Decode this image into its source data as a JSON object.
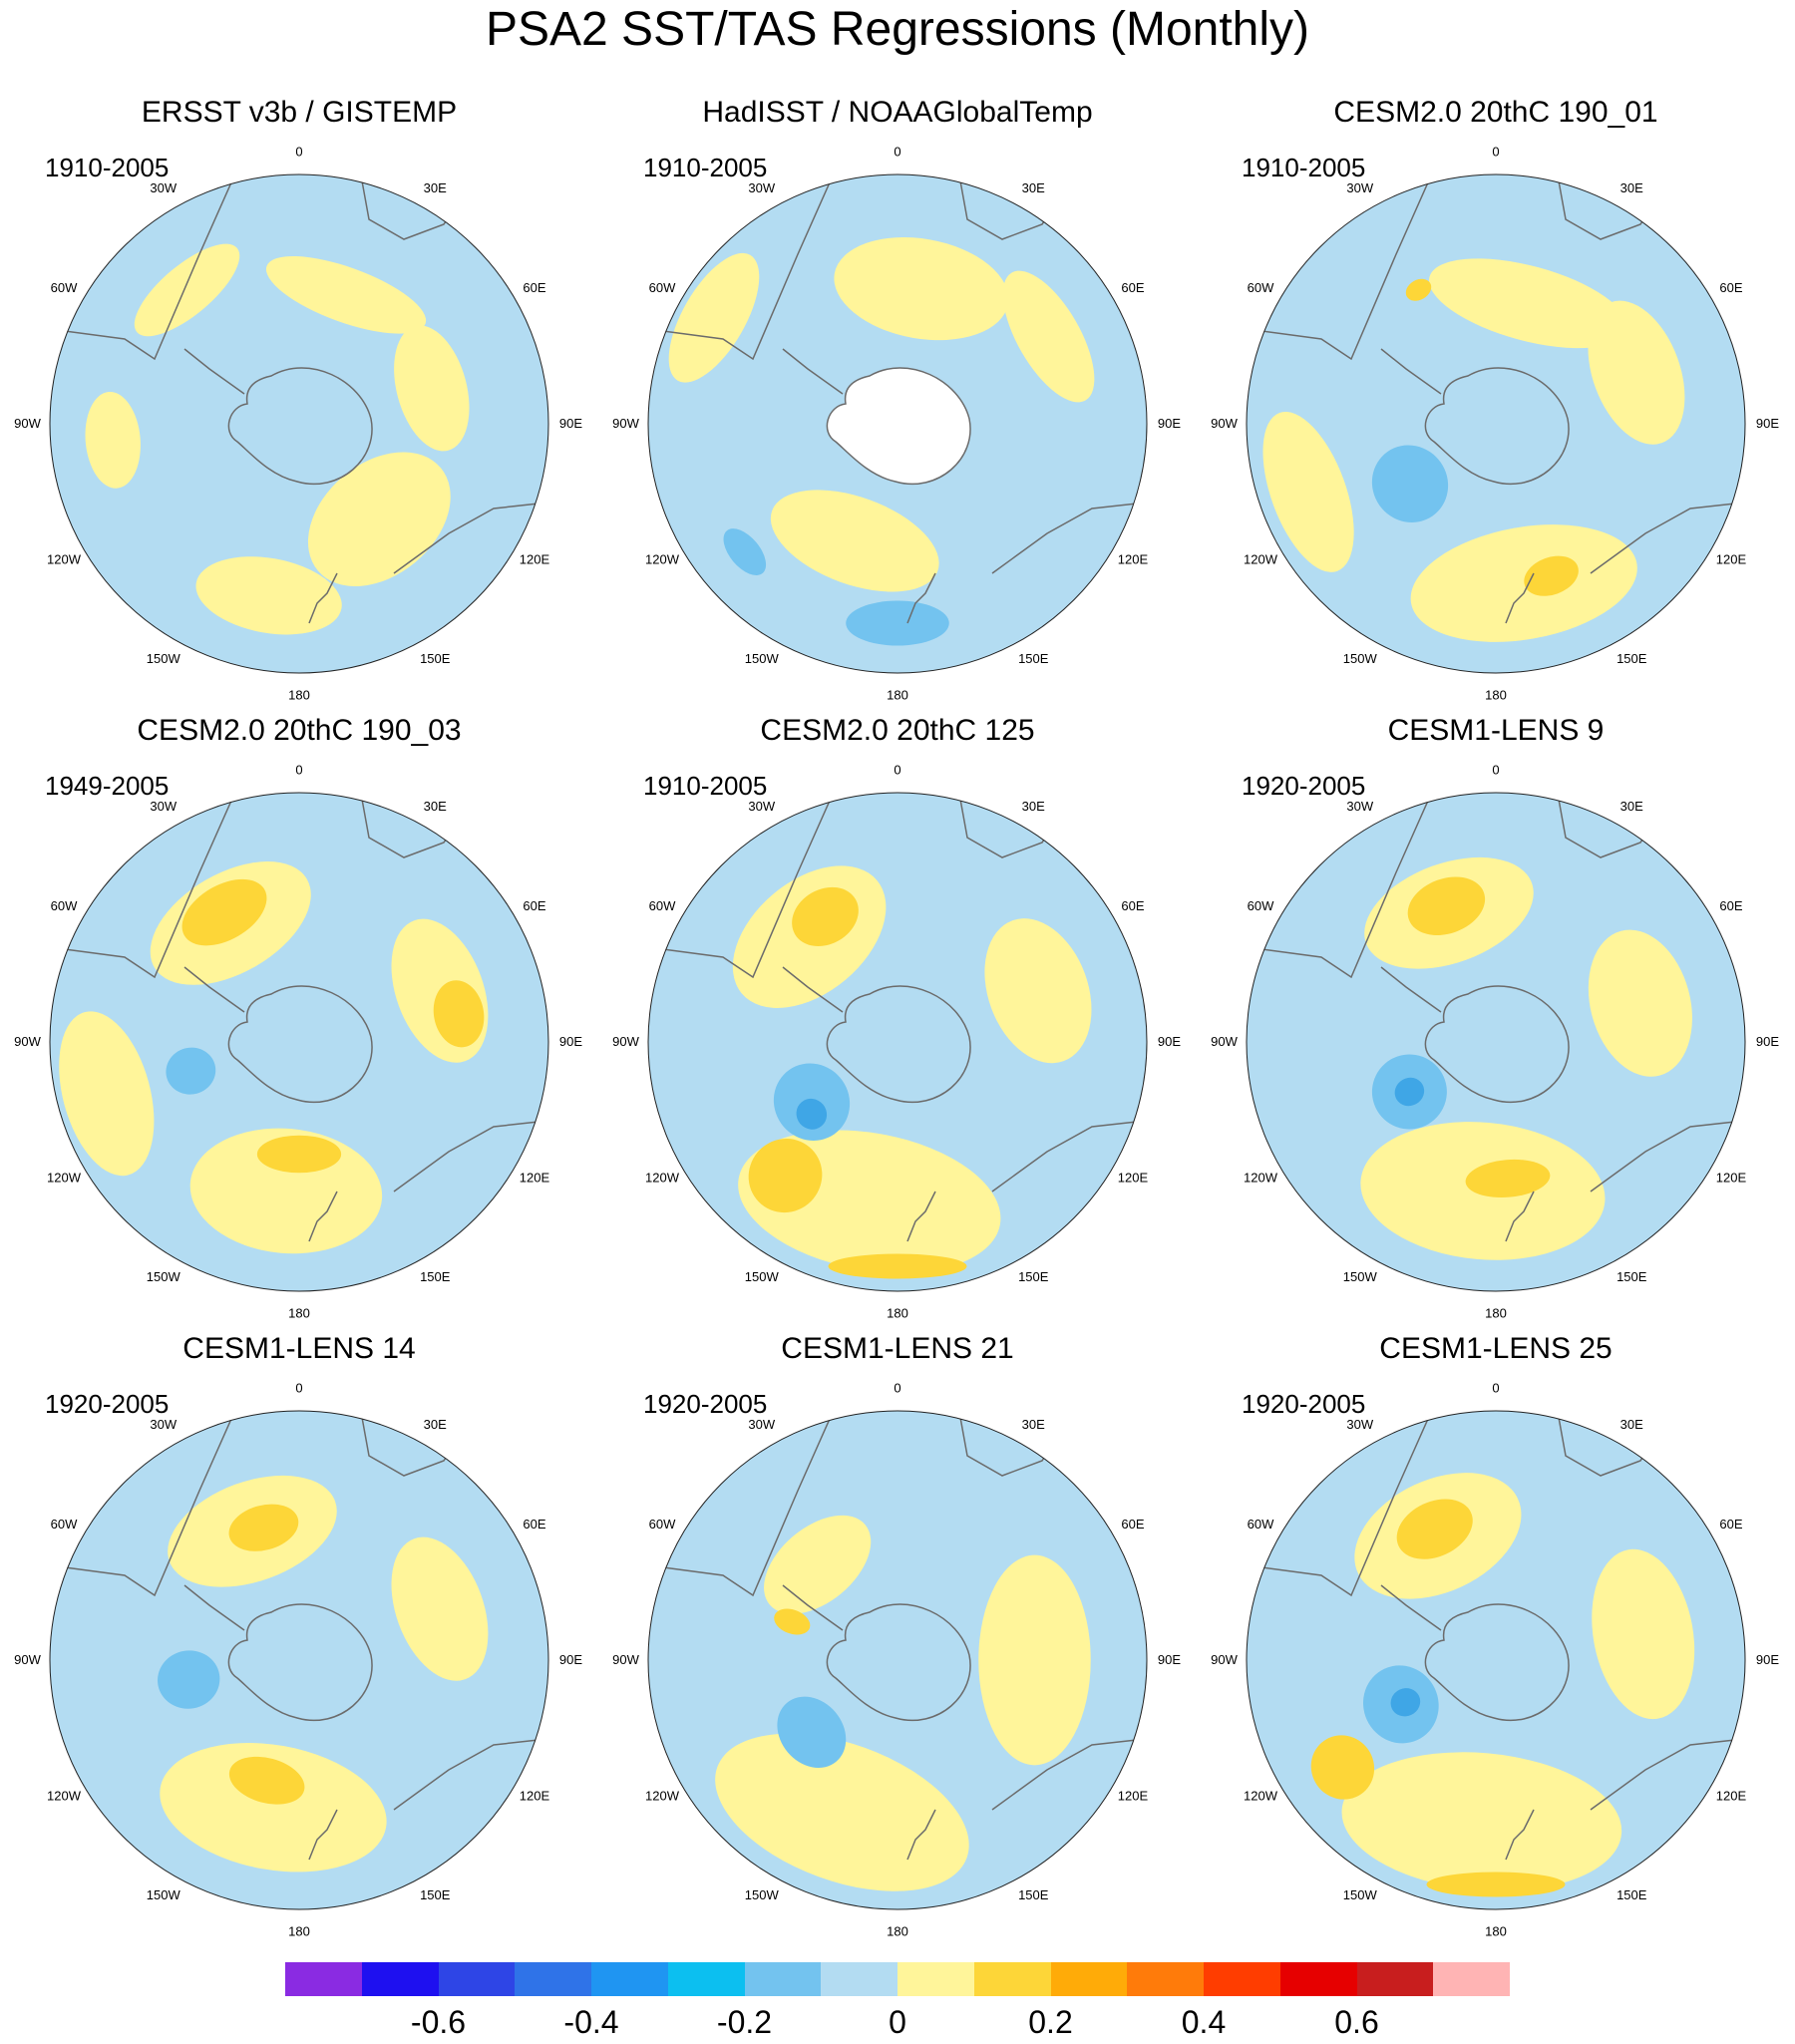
{
  "title": "PSA2 SST/TAS Regressions (Monthly)",
  "longitude_labels": [
    "0",
    "30E",
    "60E",
    "90E",
    "120E",
    "150E",
    "180",
    "150W",
    "120W",
    "90W",
    "60W",
    "30W"
  ],
  "colors": {
    "land": "#ffffff",
    "neg_weak": "#b3dcf2",
    "neg_med": "#73c3ef",
    "neg_strong": "#3fa6e6",
    "pos_weak": "#fff59a",
    "pos_med": "#fdd638",
    "pos_strong": "#ffb21a",
    "coast": "#6b6b6b"
  },
  "panels": [
    {
      "title": "ERSST v3b / GISTEMP",
      "period": "1910-2005",
      "background": "neg_weak",
      "missing_antarctica": false,
      "blobs": [
        {
          "c": "pos_weak",
          "lon": 20,
          "r": 0.55,
          "w": 38,
          "h": 0.22
        },
        {
          "c": "pos_weak",
          "lon": 75,
          "r": 0.55,
          "w": 28,
          "h": 0.28
        },
        {
          "c": "pos_weak",
          "lon": 140,
          "r": 0.5,
          "w": 40,
          "h": 0.45
        },
        {
          "c": "pos_weak",
          "lon": 190,
          "r": 0.7,
          "w": 25,
          "h": 0.3
        },
        {
          "c": "pos_weak",
          "lon": 265,
          "r": 0.75,
          "w": 15,
          "h": 0.22
        },
        {
          "c": "pos_weak",
          "lon": 320,
          "r": 0.7,
          "w": 22,
          "h": 0.2
        }
      ]
    },
    {
      "title": "HadISST / NOAAGlobalTemp",
      "period": "1910-2005",
      "background": "neg_weak",
      "missing_antarctica": true,
      "blobs": [
        {
          "c": "pos_weak",
          "lon": 10,
          "r": 0.55,
          "w": 40,
          "h": 0.4
        },
        {
          "c": "pos_weak",
          "lon": 60,
          "r": 0.7,
          "w": 25,
          "h": 0.25
        },
        {
          "c": "pos_weak",
          "lon": 200,
          "r": 0.5,
          "w": 45,
          "h": 0.35
        },
        {
          "c": "pos_weak",
          "lon": 300,
          "r": 0.85,
          "w": 20,
          "h": 0.25
        },
        {
          "c": "neg_med",
          "lon": 180,
          "r": 0.8,
          "w": 15,
          "h": 0.18
        },
        {
          "c": "neg_med",
          "lon": 230,
          "r": 0.8,
          "w": 8,
          "h": 0.12
        }
      ]
    },
    {
      "title": "CESM2.0 20thC 190_01",
      "period": "1910-2005",
      "background": "neg_weak",
      "missing_antarctica": false,
      "blobs": [
        {
          "c": "pos_weak",
          "lon": 15,
          "r": 0.5,
          "w": 55,
          "h": 0.3
        },
        {
          "c": "pos_weak",
          "lon": 70,
          "r": 0.6,
          "w": 30,
          "h": 0.35
        },
        {
          "c": "pos_weak",
          "lon": 170,
          "r": 0.65,
          "w": 45,
          "h": 0.45
        },
        {
          "c": "pos_weak",
          "lon": 250,
          "r": 0.8,
          "w": 25,
          "h": 0.3
        },
        {
          "c": "neg_med",
          "lon": 235,
          "r": 0.42,
          "w": 22,
          "h": 0.3
        },
        {
          "c": "pos_med",
          "lon": 160,
          "r": 0.65,
          "w": 10,
          "h": 0.15
        },
        {
          "c": "pos_med",
          "lon": 330,
          "r": 0.62,
          "w": 5,
          "h": 0.08
        }
      ]
    },
    {
      "title": "CESM2.0 20thC 190_03",
      "period": "1949-2005",
      "background": "neg_weak",
      "missing_antarctica": false,
      "blobs": [
        {
          "c": "pos_weak",
          "lon": 330,
          "r": 0.55,
          "w": 40,
          "h": 0.4
        },
        {
          "c": "pos_med",
          "lon": 330,
          "r": 0.6,
          "w": 18,
          "h": 0.22
        },
        {
          "c": "pos_weak",
          "lon": 70,
          "r": 0.6,
          "w": 30,
          "h": 0.35
        },
        {
          "c": "pos_med",
          "lon": 80,
          "r": 0.65,
          "w": 12,
          "h": 0.2
        },
        {
          "c": "pos_weak",
          "lon": 185,
          "r": 0.6,
          "w": 40,
          "h": 0.5
        },
        {
          "c": "pos_med",
          "lon": 180,
          "r": 0.45,
          "w": 22,
          "h": 0.15
        },
        {
          "c": "pos_weak",
          "lon": 255,
          "r": 0.8,
          "w": 25,
          "h": 0.35
        },
        {
          "c": "neg_med",
          "lon": 255,
          "r": 0.45,
          "w": 12,
          "h": 0.2
        }
      ]
    },
    {
      "title": "CESM2.0 20thC 125",
      "period": "1910-2005",
      "background": "neg_weak",
      "missing_antarctica": false,
      "blobs": [
        {
          "c": "pos_weak",
          "lon": 320,
          "r": 0.55,
          "w": 40,
          "h": 0.45
        },
        {
          "c": "pos_med",
          "lon": 330,
          "r": 0.58,
          "w": 14,
          "h": 0.22
        },
        {
          "c": "pos_weak",
          "lon": 70,
          "r": 0.6,
          "w": 30,
          "h": 0.4
        },
        {
          "c": "pos_weak",
          "lon": 190,
          "r": 0.65,
          "w": 55,
          "h": 0.55
        },
        {
          "c": "pos_med",
          "lon": 220,
          "r": 0.7,
          "w": 12,
          "h": 0.3
        },
        {
          "c": "pos_med",
          "lon": 180,
          "r": 0.9,
          "w": 18,
          "h": 0.1
        },
        {
          "c": "neg_med",
          "lon": 235,
          "r": 0.42,
          "w": 22,
          "h": 0.3
        },
        {
          "c": "neg_strong",
          "lon": 230,
          "r": 0.45,
          "w": 8,
          "h": 0.12
        }
      ]
    },
    {
      "title": "CESM1-LENS 9",
      "period": "1920-2005",
      "background": "neg_weak",
      "missing_antarctica": false,
      "blobs": [
        {
          "c": "pos_weak",
          "lon": 340,
          "r": 0.55,
          "w": 40,
          "h": 0.4
        },
        {
          "c": "pos_med",
          "lon": 340,
          "r": 0.58,
          "w": 16,
          "h": 0.22
        },
        {
          "c": "pos_weak",
          "lon": 75,
          "r": 0.6,
          "w": 30,
          "h": 0.4
        },
        {
          "c": "pos_weak",
          "lon": 185,
          "r": 0.6,
          "w": 55,
          "h": 0.55
        },
        {
          "c": "pos_med",
          "lon": 175,
          "r": 0.55,
          "w": 18,
          "h": 0.15
        },
        {
          "c": "neg_med",
          "lon": 240,
          "r": 0.4,
          "w": 22,
          "h": 0.3
        },
        {
          "c": "neg_strong",
          "lon": 240,
          "r": 0.4,
          "w": 8,
          "h": 0.12
        }
      ]
    },
    {
      "title": "CESM1-LENS 14",
      "period": "1920-2005",
      "background": "neg_weak",
      "missing_antarctica": false,
      "blobs": [
        {
          "c": "pos_weak",
          "lon": 340,
          "r": 0.55,
          "w": 40,
          "h": 0.4
        },
        {
          "c": "pos_med",
          "lon": 345,
          "r": 0.55,
          "w": 15,
          "h": 0.18
        },
        {
          "c": "pos_weak",
          "lon": 70,
          "r": 0.6,
          "w": 30,
          "h": 0.35
        },
        {
          "c": "pos_weak",
          "lon": 190,
          "r": 0.6,
          "w": 50,
          "h": 0.5
        },
        {
          "c": "pos_med",
          "lon": 195,
          "r": 0.5,
          "w": 18,
          "h": 0.18
        },
        {
          "c": "neg_med",
          "lon": 260,
          "r": 0.45,
          "w": 15,
          "h": 0.25
        }
      ]
    },
    {
      "title": "CESM1-LENS 21",
      "period": "1920-2005",
      "background": "neg_weak",
      "missing_antarctica": false,
      "blobs": [
        {
          "c": "pos_weak",
          "lon": 90,
          "r": 0.55,
          "w": 50,
          "h": 0.45
        },
        {
          "c": "pos_weak",
          "lon": 200,
          "r": 0.65,
          "w": 55,
          "h": 0.55
        },
        {
          "c": "pos_weak",
          "lon": 320,
          "r": 0.5,
          "w": 30,
          "h": 0.3
        },
        {
          "c": "neg_med",
          "lon": 230,
          "r": 0.45,
          "w": 20,
          "h": 0.25
        },
        {
          "c": "pos_med",
          "lon": 290,
          "r": 0.45,
          "w": 5,
          "h": 0.15
        }
      ]
    },
    {
      "title": "CESM1-LENS 25",
      "period": "1920-2005",
      "background": "neg_weak",
      "missing_antarctica": false,
      "blobs": [
        {
          "c": "pos_weak",
          "lon": 335,
          "r": 0.55,
          "w": 40,
          "h": 0.45
        },
        {
          "c": "pos_med",
          "lon": 335,
          "r": 0.58,
          "w": 16,
          "h": 0.22
        },
        {
          "c": "pos_weak",
          "lon": 80,
          "r": 0.6,
          "w": 35,
          "h": 0.4
        },
        {
          "c": "pos_weak",
          "lon": 185,
          "r": 0.65,
          "w": 60,
          "h": 0.55
        },
        {
          "c": "pos_med",
          "lon": 180,
          "r": 0.9,
          "w": 18,
          "h": 0.1
        },
        {
          "c": "pos_med",
          "lon": 235,
          "r": 0.75,
          "w": 10,
          "h": 0.25
        },
        {
          "c": "neg_med",
          "lon": 245,
          "r": 0.42,
          "w": 22,
          "h": 0.3
        },
        {
          "c": "neg_strong",
          "lon": 245,
          "r": 0.4,
          "w": 8,
          "h": 0.12
        }
      ]
    }
  ],
  "colorbar": {
    "colors": [
      "#8a2be2",
      "#1e10f0",
      "#2e45e6",
      "#2f73e8",
      "#1f95f2",
      "#0cbff0",
      "#73c3ef",
      "#b3dcf2",
      "#fff59a",
      "#fdd638",
      "#ffab08",
      "#ff7b0a",
      "#ff3d00",
      "#e60000",
      "#c81e1e",
      "#ffb4b4"
    ],
    "tick_labels": [
      "-0.6",
      "-0.4",
      "-0.2",
      "0",
      "0.2",
      "0.4",
      "0.6"
    ],
    "tick_positions": [
      2,
      4,
      6,
      8,
      10,
      12,
      14
    ],
    "n_boxes": 16
  }
}
